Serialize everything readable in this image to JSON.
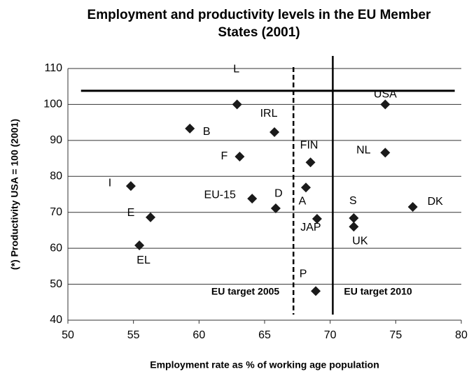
{
  "chart_data": {
    "type": "scatter",
    "title_lines": [
      "Employment and productivity levels in the EU Member",
      "States (2001)"
    ],
    "x_label": "Employment rate as % of working age population",
    "y_label": "(*) Productivity USA = 100 (2001)",
    "labels": [
      "L",
      "B",
      "IRL",
      "F",
      "FIN",
      "USA",
      "NL",
      "I",
      "A",
      "EU-15",
      "D",
      "DK",
      "S",
      "JAP",
      "UK",
      "E",
      "EL",
      "P"
    ],
    "x": [
      62.9,
      59.3,
      65.75,
      63.1,
      68.5,
      74.2,
      74.2,
      54.8,
      68.15,
      64.05,
      65.85,
      76.3,
      71.8,
      69.0,
      71.8,
      56.3,
      55.45,
      68.9
    ],
    "values": [
      100,
      93.3,
      92.3,
      85.5,
      83.9,
      100,
      86.6,
      77.3,
      76.9,
      73.8,
      71.1,
      71.5,
      68.4,
      68.2,
      66.0,
      68.6,
      60.8,
      48.1
    ],
    "color": "#1a1a1a",
    "xlim": [
      50,
      80
    ],
    "xticks": [
      50,
      55,
      60,
      65,
      70,
      75,
      80
    ],
    "ylim": [
      40,
      110
    ],
    "yticks": [
      40,
      50,
      60,
      70,
      80,
      90,
      100,
      110
    ],
    "grid": true,
    "hline": {
      "value": 103.8,
      "x_from": 51,
      "x_to": 79.5
    },
    "vlines": [
      {
        "value": 67.2,
        "label": "EU target 2005",
        "style": "dashed"
      },
      {
        "value": 70.2,
        "label": "EU target 2010",
        "style": "solid"
      }
    ]
  }
}
